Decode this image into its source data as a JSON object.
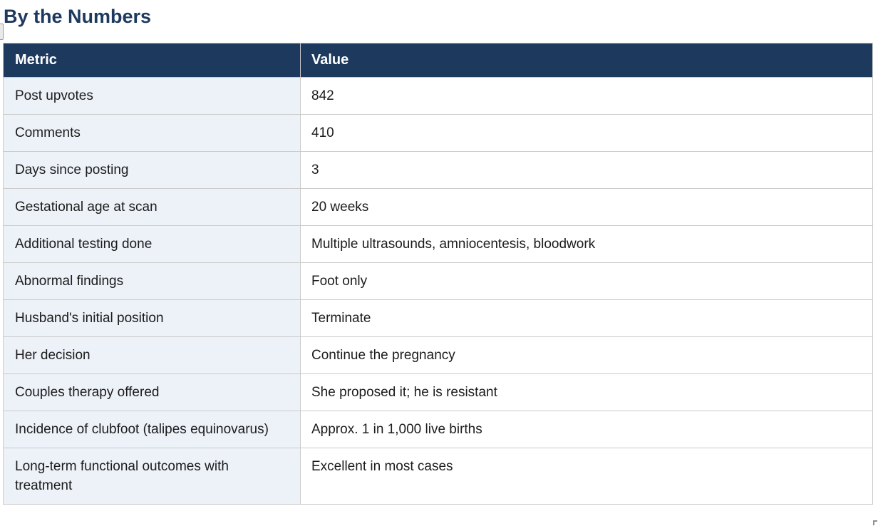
{
  "page": {
    "title": "By the Numbers"
  },
  "colors": {
    "title_text": "#1d3a5e",
    "header_bg": "#1d3a5e",
    "header_text": "#ffffff",
    "metric_cell_bg": "#edf1f8",
    "value_cell_bg": "#ffffff",
    "border": "#cbcbcb",
    "cell_text": "#1c1c1c"
  },
  "table": {
    "columns": [
      "Metric",
      "Value"
    ],
    "rows": [
      {
        "metric": "Post upvotes",
        "value": "842"
      },
      {
        "metric": "Comments",
        "value": "410"
      },
      {
        "metric": "Days since posting",
        "value": "3"
      },
      {
        "metric": "Gestational age at scan",
        "value": "20 weeks"
      },
      {
        "metric": "Additional testing done",
        "value": "Multiple ultrasounds, amniocentesis, bloodwork"
      },
      {
        "metric": "Abnormal findings",
        "value": "Foot only"
      },
      {
        "metric": "Husband's initial position",
        "value": "Terminate"
      },
      {
        "metric": "Her decision",
        "value": "Continue the pregnancy"
      },
      {
        "metric": "Couples therapy offered",
        "value": "She proposed it; he is resistant"
      },
      {
        "metric": "Incidence of clubfoot (talipes equinovarus)",
        "value": "Approx. 1 in 1,000 live births"
      },
      {
        "metric": "Long-term functional outcomes with treatment",
        "value": "Excellent in most cases"
      }
    ]
  }
}
